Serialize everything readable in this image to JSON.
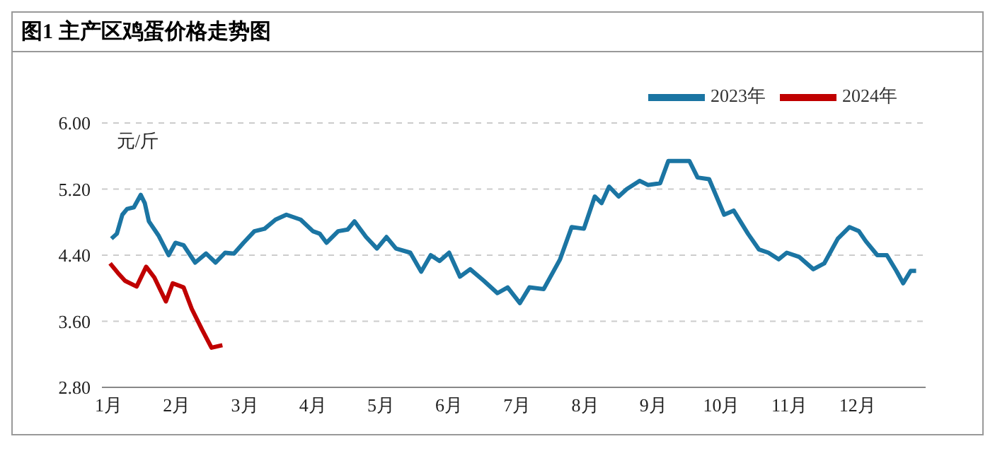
{
  "chart_data": {
    "type": "line",
    "title": "图1  主产区鸡蛋价格走势图",
    "ylabel": "元/斤",
    "xlim": [
      0.9,
      13.0
    ],
    "xticks": [
      {
        "value": 1,
        "label": "1月"
      },
      {
        "value": 2,
        "label": "2月"
      },
      {
        "value": 3,
        "label": "3月"
      },
      {
        "value": 4,
        "label": "4月"
      },
      {
        "value": 5,
        "label": "5月"
      },
      {
        "value": 6,
        "label": "6月"
      },
      {
        "value": 7,
        "label": "7月"
      },
      {
        "value": 8,
        "label": "8月"
      },
      {
        "value": 9,
        "label": "9月"
      },
      {
        "value": 10,
        "label": "10月"
      },
      {
        "value": 11,
        "label": "11月"
      },
      {
        "value": 12,
        "label": "12月"
      }
    ],
    "ylim": [
      2.8,
      6.0
    ],
    "yticks": [
      {
        "value": 2.8,
        "label": "2.80"
      },
      {
        "value": 3.6,
        "label": "3.60"
      },
      {
        "value": 4.4,
        "label": "4.40"
      },
      {
        "value": 5.2,
        "label": "5.20"
      },
      {
        "value": 6.0,
        "label": "6.00"
      }
    ],
    "grid": "y",
    "legend": "top right",
    "marker": "none",
    "line_style": "solid",
    "series": [
      {
        "name": "2023年",
        "color": "#1b75a3",
        "x": [
          1.04,
          1.12,
          1.2,
          1.27,
          1.37,
          1.47,
          1.53,
          1.59,
          1.73,
          1.88,
          1.98,
          2.1,
          2.27,
          2.43,
          2.57,
          2.71,
          2.84,
          2.98,
          3.14,
          3.29,
          3.45,
          3.61,
          3.82,
          4.0,
          4.1,
          4.2,
          4.37,
          4.51,
          4.61,
          4.78,
          4.94,
          5.08,
          5.22,
          5.43,
          5.59,
          5.73,
          5.86,
          6.0,
          6.16,
          6.31,
          6.51,
          6.71,
          6.86,
          7.04,
          7.18,
          7.39,
          7.63,
          7.8,
          7.98,
          8.14,
          8.24,
          8.35,
          8.49,
          8.61,
          8.8,
          8.92,
          9.1,
          9.22,
          9.53,
          9.65,
          9.82,
          10.04,
          10.18,
          10.39,
          10.55,
          10.69,
          10.84,
          10.96,
          11.14,
          11.35,
          11.51,
          11.71,
          11.88,
          12.02,
          12.12,
          12.29,
          12.43,
          12.57,
          12.67,
          12.78,
          12.86
        ],
        "values": [
          4.6,
          4.66,
          4.89,
          4.96,
          4.98,
          5.13,
          5.03,
          4.81,
          4.64,
          4.4,
          4.55,
          4.52,
          4.31,
          4.42,
          4.31,
          4.43,
          4.42,
          4.55,
          4.69,
          4.72,
          4.83,
          4.89,
          4.83,
          4.69,
          4.66,
          4.55,
          4.69,
          4.71,
          4.81,
          4.62,
          4.48,
          4.62,
          4.48,
          4.43,
          4.2,
          4.4,
          4.33,
          4.43,
          4.14,
          4.23,
          4.09,
          3.94,
          4.01,
          3.82,
          4.01,
          3.99,
          4.35,
          4.74,
          4.72,
          5.11,
          5.03,
          5.23,
          5.11,
          5.2,
          5.3,
          5.25,
          5.27,
          5.54,
          5.54,
          5.34,
          5.32,
          4.89,
          4.94,
          4.66,
          4.47,
          4.43,
          4.35,
          4.43,
          4.38,
          4.23,
          4.3,
          4.6,
          4.74,
          4.69,
          4.57,
          4.4,
          4.4,
          4.21,
          4.06,
          4.21,
          4.21
        ]
      },
      {
        "name": "2024年",
        "color": "#c00000",
        "x": [
          1.02,
          1.14,
          1.24,
          1.41,
          1.55,
          1.67,
          1.84,
          1.94,
          2.1,
          2.22,
          2.37,
          2.51,
          2.67
        ],
        "values": [
          4.3,
          4.18,
          4.09,
          4.02,
          4.26,
          4.13,
          3.84,
          4.06,
          4.01,
          3.75,
          3.5,
          3.28,
          3.31
        ]
      }
    ]
  }
}
